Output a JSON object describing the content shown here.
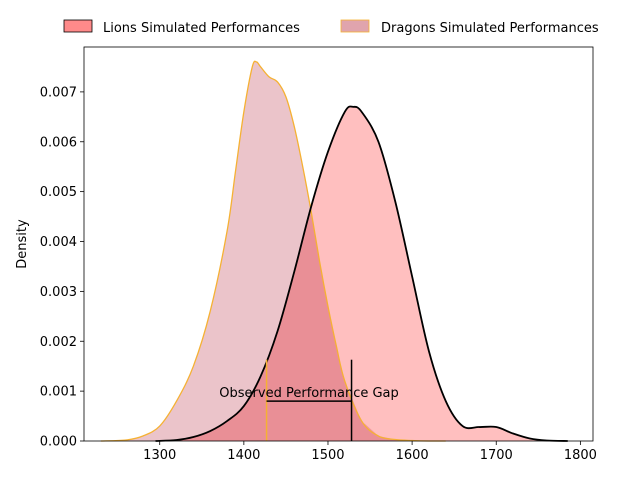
{
  "chart_data": {
    "type": "area",
    "title": "",
    "xlabel": "",
    "ylabel": "Density",
    "xlim": [
      1210,
      1815
    ],
    "ylim": [
      0,
      0.0079
    ],
    "grid": false,
    "legend_position": "top",
    "x_ticks": [
      1300,
      1400,
      1500,
      1600,
      1700,
      1800
    ],
    "x_tick_labels": [
      "1300",
      "1400",
      "1500",
      "1600",
      "1700",
      "1800"
    ],
    "y_ticks": [
      0,
      0.001,
      0.002,
      0.003,
      0.004,
      0.005,
      0.006,
      0.007
    ],
    "y_tick_labels": [
      "0.000",
      "0.001",
      "0.002",
      "0.003",
      "0.004",
      "0.005",
      "0.006",
      "0.007"
    ],
    "series": [
      {
        "name": "Lions Simulated Performances",
        "fill_color": "#ff8a8a",
        "edge_color": "#000000",
        "x": [
          1295,
          1320,
          1340,
          1360,
          1380,
          1400,
          1420,
          1440,
          1460,
          1480,
          1500,
          1520,
          1530,
          1540,
          1560,
          1580,
          1600,
          1620,
          1640,
          1660,
          1680,
          1700,
          1720,
          1740,
          1760,
          1785
        ],
        "y": [
          0.0,
          2e-05,
          8e-05,
          0.0002,
          0.0004,
          0.0007,
          0.0013,
          0.0022,
          0.0034,
          0.0047,
          0.0058,
          0.0066,
          0.0067,
          0.0066,
          0.006,
          0.0048,
          0.0033,
          0.0018,
          0.0008,
          0.0003,
          0.00028,
          0.00028,
          0.00015,
          5e-05,
          1e-05,
          0.0
        ]
      },
      {
        "name": "Dragons Simulated Performances",
        "fill_color": "#e0a4ad",
        "edge_color": "#f5b133",
        "x": [
          1230,
          1260,
          1280,
          1300,
          1320,
          1340,
          1360,
          1380,
          1390,
          1400,
          1410,
          1415,
          1420,
          1430,
          1440,
          1450,
          1460,
          1470,
          1480,
          1490,
          1500,
          1510,
          1520,
          1540,
          1560,
          1580,
          1600,
          1620,
          1640
        ],
        "y": [
          0.0,
          2e-05,
          0.0001,
          0.0003,
          0.0008,
          0.0015,
          0.0026,
          0.0042,
          0.0054,
          0.0066,
          0.0075,
          0.0076,
          0.0075,
          0.0073,
          0.0072,
          0.0069,
          0.0063,
          0.0055,
          0.0046,
          0.0036,
          0.0027,
          0.0019,
          0.0012,
          0.0004,
          0.0001,
          3e-05,
          1e-05,
          0.0,
          0.0
        ]
      }
    ],
    "annotation": {
      "text": "Observed Performance Gap",
      "x_start": 1427,
      "x_end": 1528,
      "y_line": 0.0008,
      "y_top": 0.00163
    }
  }
}
